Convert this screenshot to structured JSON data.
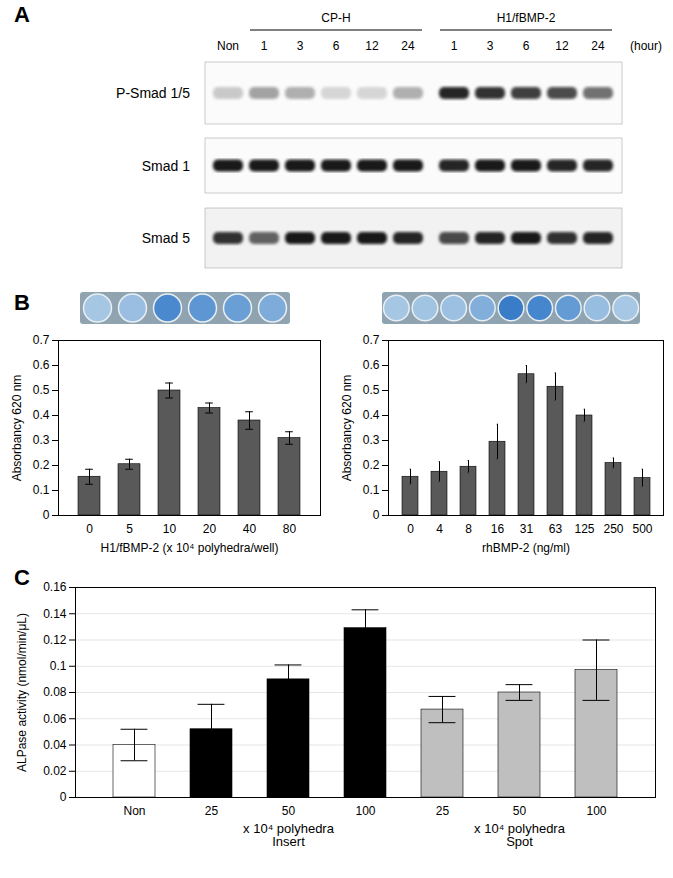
{
  "blot": {
    "panel": "A",
    "control_lane": "Non",
    "unit": "(hour)",
    "groups": [
      {
        "label": "CP-H",
        "lanes": [
          "1",
          "3",
          "6",
          "12",
          "24"
        ]
      },
      {
        "label": "H1/fBMP-2",
        "lanes": [
          "1",
          "3",
          "6",
          "12",
          "24"
        ]
      }
    ],
    "rows": [
      {
        "label": "P-Smad 1/5",
        "bands": [
          0.2,
          0.35,
          0.3,
          0.15,
          0.15,
          0.3,
          0.85,
          0.8,
          0.75,
          0.7,
          0.55
        ]
      },
      {
        "label": "Smad 1",
        "bands": [
          0.9,
          0.9,
          0.9,
          0.9,
          0.9,
          0.9,
          0.85,
          0.9,
          0.9,
          0.85,
          0.85
        ]
      },
      {
        "label": "Smad 5",
        "bands": [
          0.8,
          0.6,
          0.9,
          0.9,
          0.9,
          0.85,
          0.7,
          0.85,
          0.9,
          0.8,
          0.85
        ]
      }
    ]
  },
  "chart_data": [
    {
      "type": "bar",
      "panel": "B",
      "x_label": "H1/fBMP-2 (x 10⁴ polyhedra/well)",
      "y_label": "Absorbancy 620 nm",
      "categories": [
        "0",
        "5",
        "10",
        "20",
        "40",
        "80"
      ],
      "values": [
        0.155,
        0.205,
        0.5,
        0.43,
        0.38,
        0.31
      ],
      "errors": [
        0.03,
        0.02,
        0.03,
        0.02,
        0.035,
        0.025
      ],
      "color": "#595959",
      "ylim": [
        0,
        0.7
      ],
      "yticks": [
        0,
        0.1,
        0.2,
        0.3,
        0.4,
        0.5,
        0.6,
        0.7
      ],
      "grid": false
    },
    {
      "type": "bar",
      "x_label": "rhBMP-2 (ng/ml)",
      "y_label": "Absorbancy 620 nm",
      "categories": [
        "0",
        "4",
        "8",
        "16",
        "31",
        "63",
        "125",
        "250",
        "500"
      ],
      "values": [
        0.155,
        0.175,
        0.195,
        0.295,
        0.565,
        0.515,
        0.4,
        0.21,
        0.15
      ],
      "errors": [
        0.03,
        0.04,
        0.025,
        0.07,
        0.035,
        0.055,
        0.025,
        0.02,
        0.035
      ],
      "color": "#595959",
      "ylim": [
        0,
        0.7
      ],
      "yticks": [
        0,
        0.1,
        0.2,
        0.3,
        0.4,
        0.5,
        0.6,
        0.7
      ],
      "grid": false
    },
    {
      "type": "bar",
      "panel": "C",
      "y_label": "ALPase activity (nmol/min/μL)",
      "categories": [
        "Non",
        "25",
        "50",
        "100",
        "25",
        "50",
        "100"
      ],
      "groups": [
        null,
        "Insert",
        "Insert",
        "Insert",
        "Spot",
        "Spot",
        "Spot"
      ],
      "group_title": "x 10⁴ polyhedra",
      "values": [
        0.04,
        0.052,
        0.09,
        0.129,
        0.067,
        0.08,
        0.097
      ],
      "errors": [
        0.012,
        0.019,
        0.011,
        0.014,
        0.01,
        0.006,
        0.023
      ],
      "colors": [
        "#ffffff",
        "#000000",
        "#000000",
        "#000000",
        "#bfbfbf",
        "#bfbfbf",
        "#bfbfbf"
      ],
      "ylim": [
        0,
        0.16
      ],
      "yticks": [
        0,
        0.02,
        0.04,
        0.06,
        0.08,
        0.1,
        0.12,
        0.14,
        0.16
      ],
      "grid": true
    }
  ]
}
